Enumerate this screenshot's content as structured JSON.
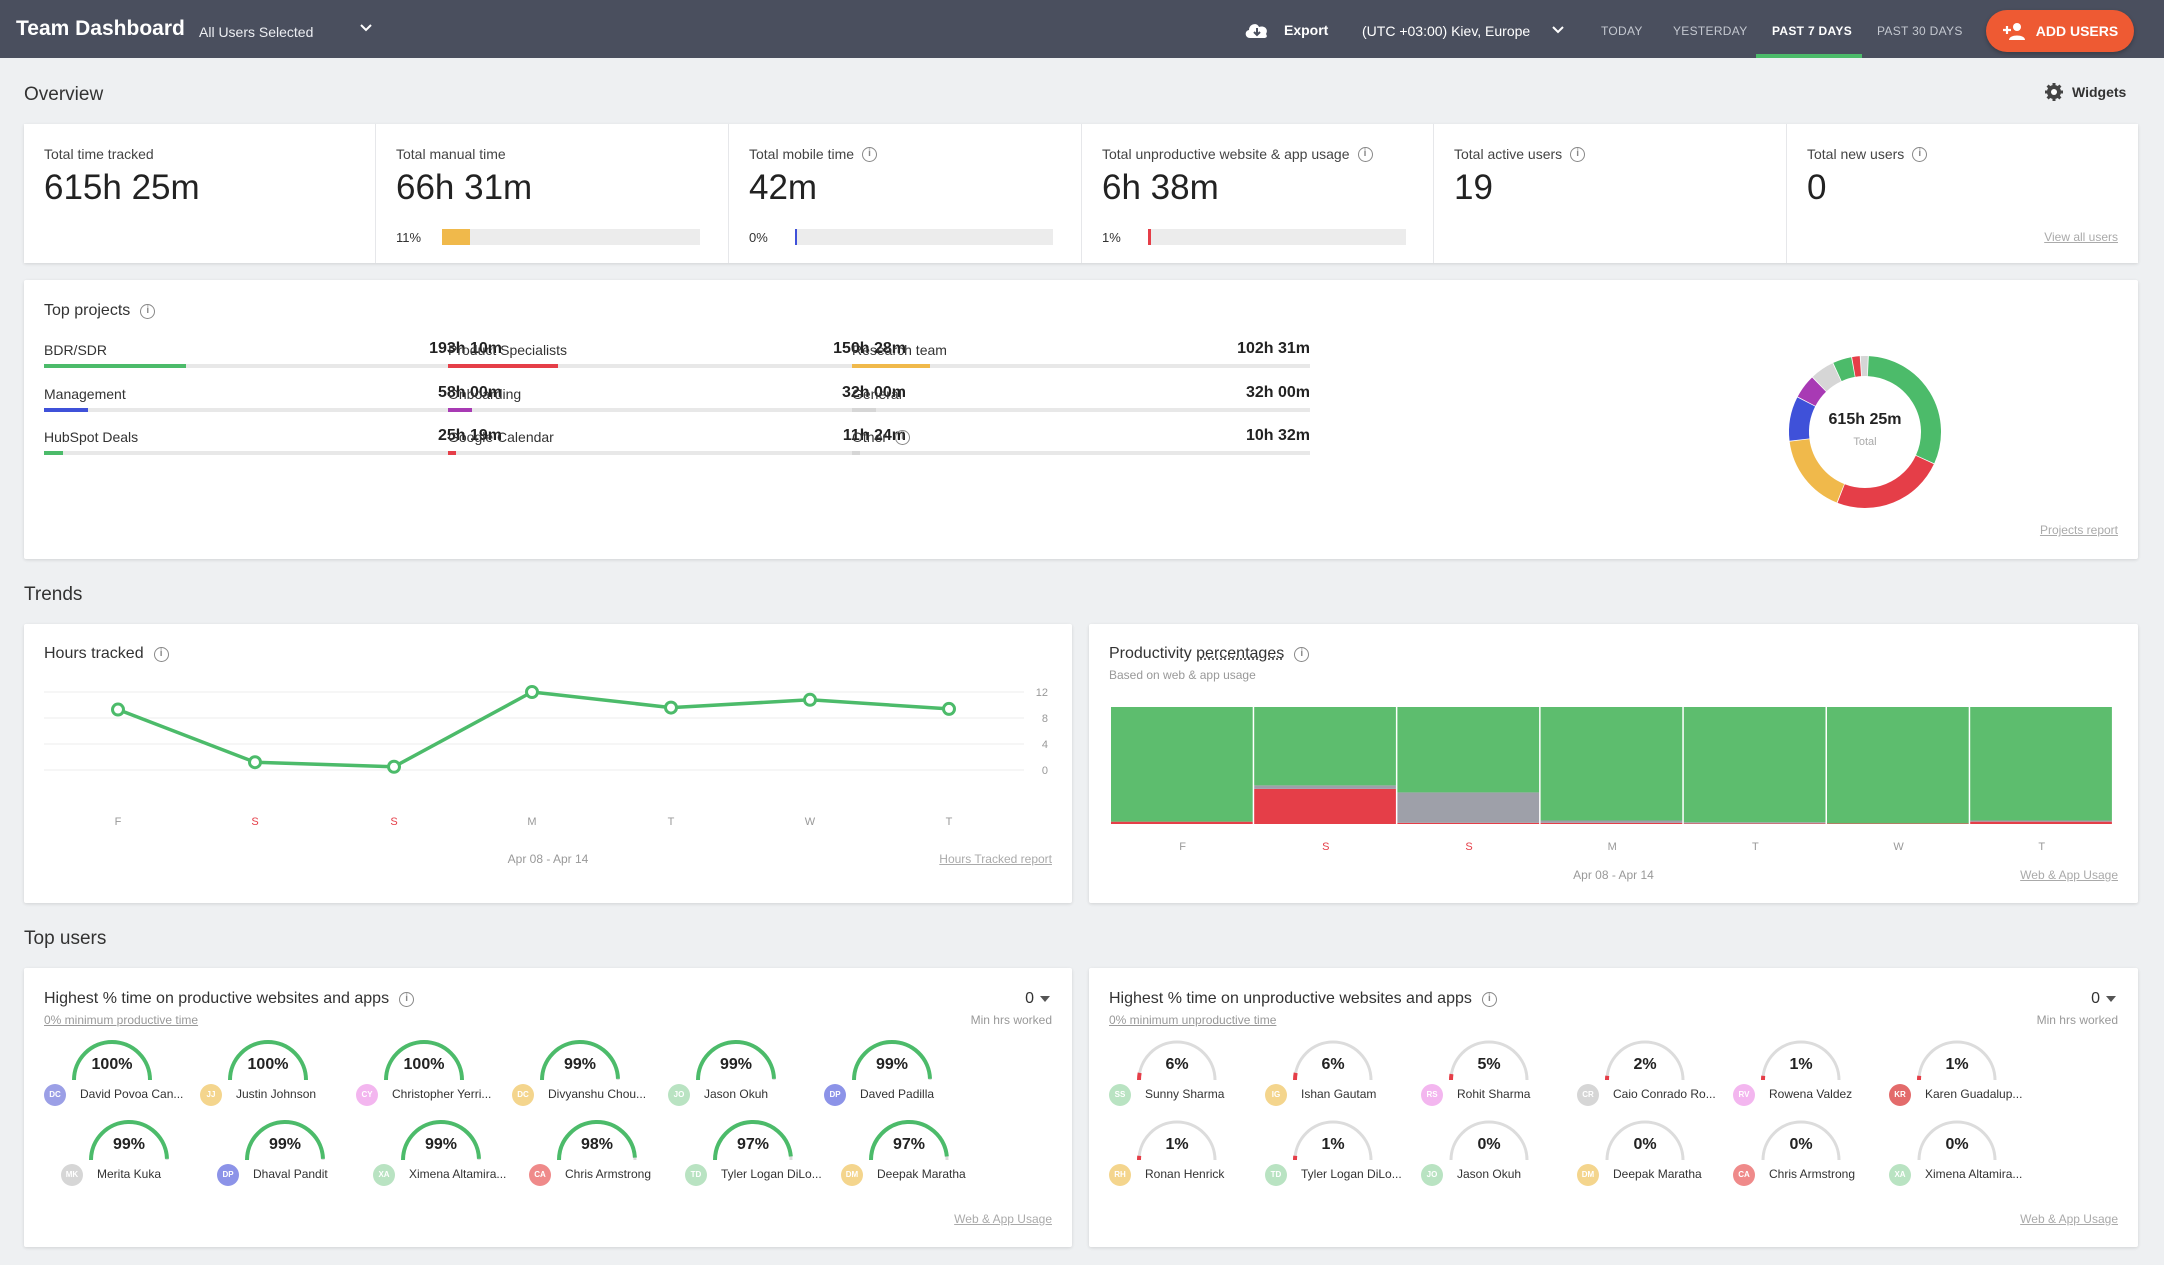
{
  "header": {
    "title": "Team Dashboard",
    "users_selected": "All Users Selected",
    "export_label": "Export",
    "timezone": "(UTC +03:00) Kiev, Europe",
    "ranges": [
      "TODAY",
      "YESTERDAY",
      "PAST 7 DAYS",
      "PAST 30 DAYS"
    ],
    "active_range": "PAST 7 DAYS",
    "add_users": "ADD USERS"
  },
  "overview": {
    "title": "Overview",
    "widgets": "Widgets",
    "stats": [
      {
        "label": "Total time tracked",
        "value": "615h 25m"
      },
      {
        "label": "Total manual time",
        "value": "66h 31m",
        "pct": "11%",
        "fill": 0.11,
        "color": "#f0b94b"
      },
      {
        "label": "Total mobile time",
        "value": "42m",
        "pct": "0%",
        "fill": 0.004,
        "color": "#3f51d9"
      },
      {
        "label": "Total unproductive website & app usage",
        "value": "6h 38m",
        "pct": "1%",
        "fill": 0.012,
        "color": "#e53e48"
      },
      {
        "label": "Total active users",
        "value": "19"
      },
      {
        "label": "Total new users",
        "value": "0",
        "link": "View all users"
      }
    ]
  },
  "projects": {
    "title": "Top projects",
    "items": [
      {
        "name": "BDR/SDR",
        "value": "193h 10m",
        "fill": 0.31,
        "color": "#4cbb6a"
      },
      {
        "name": "Product Specialists",
        "value": "150h 28m",
        "fill": 0.24,
        "color": "#e53e48"
      },
      {
        "name": "Research team",
        "value": "102h 31m",
        "fill": 0.17,
        "color": "#f0b94b"
      },
      {
        "name": "Management",
        "value": "58h 00m",
        "fill": 0.095,
        "color": "#3f51d9"
      },
      {
        "name": "Onboarding",
        "value": "32h 00m",
        "fill": 0.052,
        "color": "#a83ab4"
      },
      {
        "name": "General",
        "value": "32h 00m",
        "fill": 0.052,
        "color": "#d6d6d6"
      },
      {
        "name": "HubSpot Deals",
        "value": "25h 19m",
        "fill": 0.041,
        "color": "#4cbb6a"
      },
      {
        "name": "Google Calendar",
        "value": "11h 24m",
        "fill": 0.018,
        "color": "#e53e48"
      },
      {
        "name": "Other",
        "value": "10h 32m",
        "fill": 0.017,
        "color": "#d6d6d6"
      }
    ],
    "donut_total": "615h 25m",
    "donut_label": "Total",
    "report_link": "Projects report"
  },
  "trends": {
    "title": "Trends",
    "hours_title": "Hours tracked",
    "hours_range": "Apr 08 - Apr 14",
    "hours_link": "Hours Tracked report",
    "prod_title": "Productivity",
    "prod_title_2": "percentages",
    "prod_sub": "Based on web & app usage",
    "prod_range": "Apr 08 - Apr 14",
    "prod_link": "Web & App Usage"
  },
  "chart_data": [
    {
      "type": "line",
      "categories": [
        "F",
        "S",
        "S",
        "M",
        "T",
        "W",
        "T"
      ],
      "weekend": [
        false,
        true,
        true,
        false,
        false,
        false,
        false
      ],
      "values": [
        9.3,
        1.2,
        0.5,
        12,
        9.6,
        10.8,
        9.4
      ],
      "yticks": [
        0,
        4,
        8,
        12
      ],
      "ylim": [
        0,
        12
      ],
      "color": "#4cbb6a"
    },
    {
      "type": "bar",
      "stacked": true,
      "categories": [
        "F",
        "S",
        "S",
        "M",
        "T",
        "W",
        "T"
      ],
      "weekend": [
        false,
        true,
        true,
        false,
        false,
        false,
        false
      ],
      "series": [
        {
          "color": "#e53e48",
          "values": [
            2,
            30,
            1,
            1,
            0.5,
            0.5,
            2
          ]
        },
        {
          "color": "#9ea0a9",
          "values": [
            0,
            3,
            26,
            2,
            1,
            0,
            1
          ]
        },
        {
          "color": "#5dbd6e",
          "values": [
            98,
            67,
            73,
            97,
            98.5,
            99.5,
            97
          ]
        }
      ]
    }
  ],
  "top_users": {
    "title": "Top users",
    "productive": {
      "title": "Highest % time on productive websites and apps",
      "sub": "0% minimum productive time",
      "min_hrs_value": "0",
      "min_hrs_label": "Min hrs worked",
      "link": "Web & App Usage",
      "users": [
        {
          "pct": "100%",
          "p": 1.0,
          "name": "David Povoa Can...",
          "initials": "DC",
          "avatar": "#9b9fe6"
        },
        {
          "pct": "100%",
          "p": 1.0,
          "name": "Justin Johnson",
          "initials": "JJ",
          "avatar": "#f4d58d"
        },
        {
          "pct": "100%",
          "p": 1.0,
          "name": "Christopher Yerri...",
          "initials": "CY",
          "avatar": "#f3b6ef"
        },
        {
          "pct": "99%",
          "p": 0.99,
          "name": "Divyanshu Chou...",
          "initials": "DC",
          "avatar": "#f4d58d"
        },
        {
          "pct": "99%",
          "p": 0.99,
          "name": "Jason Okuh",
          "initials": "JO",
          "avatar": "#b9e3c2"
        },
        {
          "pct": "99%",
          "p": 0.99,
          "name": "Daved Padilla",
          "initials": "DP",
          "avatar": "#8c93e8"
        },
        {
          "pct": "99%",
          "p": 0.99,
          "name": "Merita Kuka",
          "initials": "MK",
          "avatar": "#d6d6d6"
        },
        {
          "pct": "99%",
          "p": 0.99,
          "name": "Dhaval Pandit",
          "initials": "DP",
          "avatar": "#8c93e8"
        },
        {
          "pct": "99%",
          "p": 0.99,
          "name": "Ximena Altamira...",
          "initials": "XA",
          "avatar": "#b9e3c2"
        },
        {
          "pct": "98%",
          "p": 0.98,
          "name": "Chris Armstrong",
          "initials": "CA",
          "avatar": "#ef8a8a"
        },
        {
          "pct": "97%",
          "p": 0.97,
          "name": "Tyler Logan DiLo...",
          "initials": "TD",
          "avatar": "#b9e3c2"
        },
        {
          "pct": "97%",
          "p": 0.97,
          "name": "Deepak Maratha",
          "initials": "DM",
          "avatar": "#f4d58d"
        }
      ]
    },
    "unproductive": {
      "title": "Highest % time on unproductive websites and apps",
      "sub": "0% minimum unproductive time",
      "min_hrs_value": "0",
      "min_hrs_label": "Min hrs worked",
      "link": "Web & App Usage",
      "users": [
        {
          "pct": "6%",
          "p": 0.06,
          "name": "Sunny Sharma",
          "initials": "SS",
          "avatar": "#b9e3c2"
        },
        {
          "pct": "6%",
          "p": 0.06,
          "name": "Ishan Gautam",
          "initials": "IG",
          "avatar": "#f4d58d"
        },
        {
          "pct": "5%",
          "p": 0.05,
          "name": "Rohit Sharma",
          "initials": "RS",
          "avatar": "#f3b6ef"
        },
        {
          "pct": "2%",
          "p": 0.02,
          "name": "Caio Conrado Ro...",
          "initials": "CR",
          "avatar": "#d6d6d6"
        },
        {
          "pct": "1%",
          "p": 0.01,
          "name": "Rowena Valdez",
          "initials": "RV",
          "avatar": "#f3b6ef"
        },
        {
          "pct": "1%",
          "p": 0.01,
          "name": "Karen Guadalup...",
          "initials": "KR",
          "avatar": "#e36b6b"
        },
        {
          "pct": "1%",
          "p": 0.01,
          "name": "Ronan Henrick",
          "initials": "RH",
          "avatar": "#f4d58d"
        },
        {
          "pct": "1%",
          "p": 0.01,
          "name": "Tyler Logan DiLo...",
          "initials": "TD",
          "avatar": "#b9e3c2"
        },
        {
          "pct": "0%",
          "p": 0.0,
          "name": "Jason Okuh",
          "initials": "JO",
          "avatar": "#b9e3c2"
        },
        {
          "pct": "0%",
          "p": 0.0,
          "name": "Deepak Maratha",
          "initials": "DM",
          "avatar": "#f4d58d"
        },
        {
          "pct": "0%",
          "p": 0.0,
          "name": "Chris Armstrong",
          "initials": "CA",
          "avatar": "#ef8a8a"
        },
        {
          "pct": "0%",
          "p": 0.0,
          "name": "Ximena Altamira...",
          "initials": "XA",
          "avatar": "#b9e3c2"
        }
      ]
    }
  }
}
